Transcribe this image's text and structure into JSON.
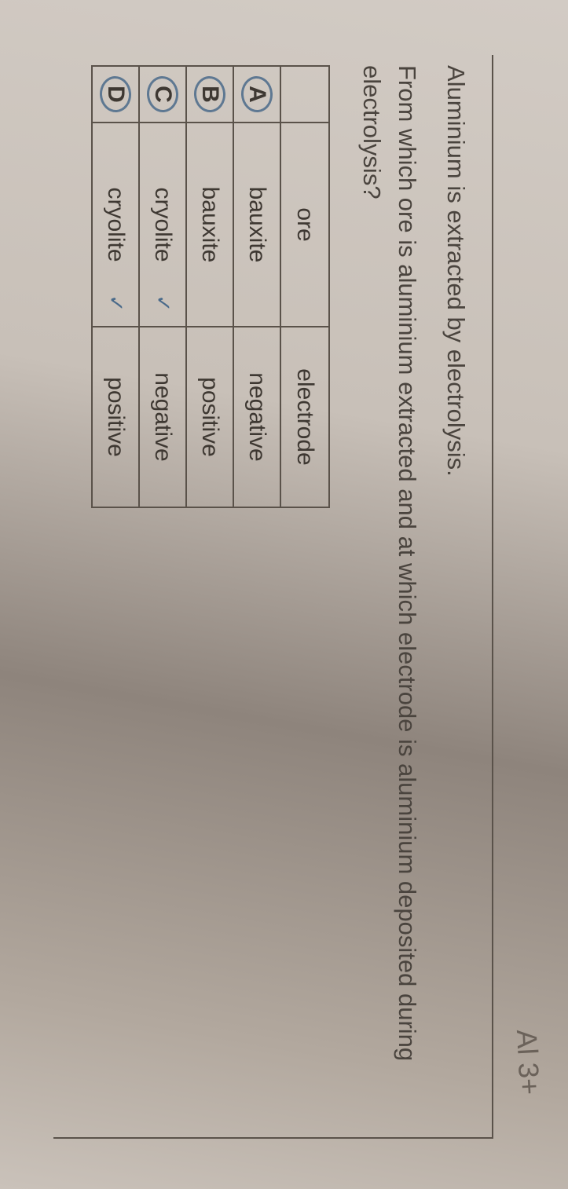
{
  "handwritten_annotation": "Al 3+",
  "question": {
    "line1": "Aluminium is extracted by electrolysis.",
    "line2": "From which ore is aluminium extracted and at which electrode is aluminium deposited during electrolysis?"
  },
  "table": {
    "headers": {
      "ore": "ore",
      "electrode": "electrode"
    },
    "rows": [
      {
        "letter": "A",
        "ore": "bauxite",
        "electrode": "negative",
        "circled": true,
        "ore_tick": false
      },
      {
        "letter": "B",
        "ore": "bauxite",
        "electrode": "positive",
        "circled": true,
        "ore_tick": false
      },
      {
        "letter": "C",
        "ore": "cryolite",
        "electrode": "negative",
        "circled": true,
        "ore_tick": true
      },
      {
        "letter": "D",
        "ore": "cryolite",
        "electrode": "positive",
        "circled": true,
        "ore_tick": true
      }
    ]
  },
  "style": {
    "circle_color": "#4a6a8a",
    "text_color": "#3a3632",
    "border_color": "#5a524a"
  }
}
